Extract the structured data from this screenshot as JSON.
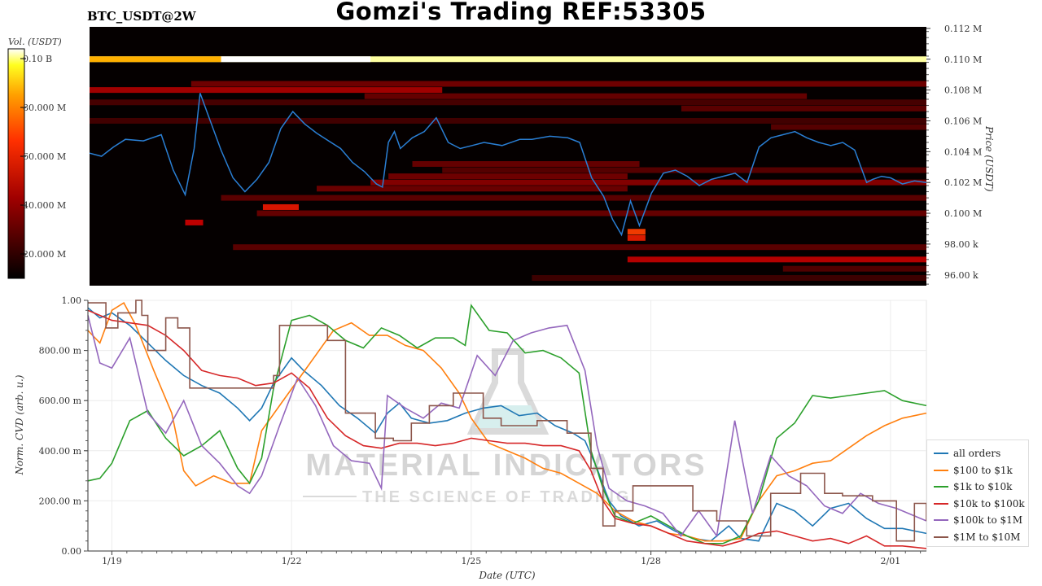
{
  "header": {
    "title": "Gomzi's Trading REF:53305",
    "symbol": "BTC_USDT@2W"
  },
  "watermark": {
    "brand": "MATERIAL INDICATORS",
    "tagline": "THE SCIENCE OF TRADING"
  },
  "colors": {
    "price_line": "#2a7fd4",
    "heatmap_bg": "#050000"
  },
  "chart_data": [
    {
      "type": "heatmap",
      "colorbar": {
        "label": "Vol. (USDT)",
        "ticks": [
          "0.10 B",
          "80.000 M",
          "60.000 M",
          "40.000 M",
          "20.000 M"
        ],
        "tick_values": [
          100000000,
          80000000,
          60000000,
          40000000,
          20000000
        ],
        "range": [
          10000000,
          104000000
        ],
        "colormap": "hot"
      },
      "ylabel": "Price (USDT)",
      "y_ticks": [
        "0.112 M",
        "0.110 M",
        "0.108 M",
        "0.106 M",
        "0.104 M",
        "0.102 M",
        "0.100 M",
        "98.00 k",
        "96.00 k"
      ],
      "y_tick_values": [
        112000,
        110000,
        108000,
        106000,
        104000,
        102000,
        100000,
        98000,
        96000
      ],
      "ylim": [
        95300,
        112100
      ],
      "x_range_days": [
        18.6,
        32.6
      ],
      "price_series": {
        "name": "",
        "days": [
          18.6,
          18.8,
          19.0,
          19.2,
          19.5,
          19.8,
          20.0,
          20.2,
          20.35,
          20.45,
          20.6,
          20.8,
          21.0,
          21.2,
          21.4,
          21.6,
          21.8,
          22.0,
          22.2,
          22.4,
          22.6,
          22.8,
          23.0,
          23.2,
          23.4,
          23.5,
          23.6,
          23.7,
          23.8,
          24.0,
          24.2,
          24.4,
          24.6,
          24.8,
          25.0,
          25.2,
          25.5,
          25.8,
          26.0,
          26.3,
          26.6,
          26.8,
          27.0,
          27.2,
          27.35,
          27.5,
          27.65,
          27.8,
          28.0,
          28.2,
          28.4,
          28.6,
          28.8,
          29.0,
          29.2,
          29.4,
          29.6,
          29.8,
          30.0,
          30.2,
          30.4,
          30.6,
          30.8,
          31.0,
          31.2,
          31.4,
          31.6,
          31.7,
          31.85,
          32.0,
          32.2,
          32.4,
          32.6
        ],
        "price": [
          103900,
          103700,
          104300,
          104800,
          104700,
          105100,
          102800,
          101200,
          104200,
          107800,
          106200,
          104100,
          102300,
          101400,
          102200,
          103300,
          105500,
          106600,
          105800,
          105200,
          104700,
          104200,
          103300,
          102700,
          101900,
          101700,
          104600,
          105300,
          104200,
          104900,
          105300,
          106200,
          104600,
          104200,
          104400,
          104600,
          104400,
          104800,
          104800,
          105000,
          104900,
          104600,
          102300,
          101100,
          99600,
          98600,
          100800,
          99200,
          101300,
          102600,
          102800,
          102400,
          101800,
          102200,
          102400,
          102600,
          102000,
          104300,
          104900,
          105100,
          105300,
          104900,
          104600,
          104400,
          104600,
          104100,
          102000,
          102200,
          102400,
          102300,
          101900,
          102100,
          102000
        ]
      },
      "bands": [
        {
          "price": 110000,
          "start": 18.6,
          "end": 32.6,
          "intensity": 0.98
        },
        {
          "price": 108000,
          "start": 18.6,
          "end": 24.5,
          "intensity": 0.32
        },
        {
          "price": 108400,
          "start": 20.3,
          "end": 32.6,
          "intensity": 0.22
        },
        {
          "price": 107600,
          "start": 23.2,
          "end": 30.6,
          "intensity": 0.2
        },
        {
          "price": 107200,
          "start": 18.6,
          "end": 32.6,
          "intensity": 0.14
        },
        {
          "price": 106800,
          "start": 28.5,
          "end": 32.6,
          "intensity": 0.18
        },
        {
          "price": 106000,
          "start": 18.6,
          "end": 32.6,
          "intensity": 0.13
        },
        {
          "price": 105600,
          "start": 30.0,
          "end": 32.6,
          "intensity": 0.17
        },
        {
          "price": 103200,
          "start": 24.0,
          "end": 27.8,
          "intensity": 0.2
        },
        {
          "price": 102800,
          "start": 24.5,
          "end": 32.6,
          "intensity": 0.17
        },
        {
          "price": 102400,
          "start": 23.6,
          "end": 27.6,
          "intensity": 0.22
        },
        {
          "price": 102000,
          "start": 23.3,
          "end": 32.6,
          "intensity": 0.26
        },
        {
          "price": 101600,
          "start": 22.4,
          "end": 27.6,
          "intensity": 0.21
        },
        {
          "price": 101000,
          "start": 20.8,
          "end": 32.6,
          "intensity": 0.18
        },
        {
          "price": 100400,
          "start": 21.5,
          "end": 22.1,
          "intensity": 0.48
        },
        {
          "price": 100000,
          "start": 21.4,
          "end": 32.6,
          "intensity": 0.2
        },
        {
          "price": 99400,
          "start": 20.2,
          "end": 20.5,
          "intensity": 0.38
        },
        {
          "price": 98800,
          "start": 27.6,
          "end": 27.9,
          "intensity": 0.62
        },
        {
          "price": 98400,
          "start": 27.6,
          "end": 27.9,
          "intensity": 0.5
        },
        {
          "price": 97800,
          "start": 21.0,
          "end": 32.6,
          "intensity": 0.18
        },
        {
          "price": 97000,
          "start": 27.6,
          "end": 32.6,
          "intensity": 0.36
        },
        {
          "price": 96400,
          "start": 30.2,
          "end": 32.6,
          "intensity": 0.16
        },
        {
          "price": 95800,
          "start": 26.0,
          "end": 32.6,
          "intensity": 0.12
        }
      ]
    },
    {
      "type": "line",
      "xlabel": "Date (UTC)",
      "ylabel": "Norm. CVD (arb. u.)",
      "ylim": [
        0,
        1
      ],
      "x_range_days": [
        18.6,
        32.6
      ],
      "x_ticks": [
        "1/19",
        "1/22",
        "1/25",
        "1/28",
        "2/01"
      ],
      "x_tick_days": [
        19,
        22,
        25,
        28,
        32
      ],
      "y_ticks": [
        "0.00",
        "200.00 m",
        "400.00 m",
        "600.00 m",
        "800.00 m",
        "1.00"
      ],
      "y_tick_values": [
        0,
        0.2,
        0.4,
        0.6,
        0.8,
        1.0
      ],
      "grid": true,
      "legend_position": "right",
      "series": [
        {
          "name": "all orders",
          "color": "#1f77b4",
          "step": false,
          "x": [
            18.6,
            18.8,
            19.0,
            19.3,
            19.6,
            19.9,
            20.2,
            20.5,
            20.8,
            21.1,
            21.3,
            21.5,
            21.7,
            22.0,
            22.2,
            22.5,
            22.8,
            23.1,
            23.4,
            23.6,
            23.8,
            24.0,
            24.3,
            24.6,
            24.9,
            25.2,
            25.5,
            25.8,
            26.1,
            26.4,
            26.7,
            26.9,
            27.1,
            27.3,
            27.5,
            27.8,
            28.1,
            28.4,
            28.7,
            29.0,
            29.3,
            29.5,
            29.8,
            30.1,
            30.4,
            30.7,
            31.0,
            31.3,
            31.6,
            31.9,
            32.2,
            32.6
          ],
          "y": [
            0.97,
            0.93,
            0.95,
            0.9,
            0.83,
            0.76,
            0.7,
            0.66,
            0.63,
            0.57,
            0.52,
            0.57,
            0.67,
            0.77,
            0.72,
            0.66,
            0.58,
            0.53,
            0.47,
            0.55,
            0.59,
            0.53,
            0.51,
            0.52,
            0.55,
            0.57,
            0.58,
            0.54,
            0.55,
            0.5,
            0.47,
            0.44,
            0.33,
            0.2,
            0.14,
            0.1,
            0.12,
            0.08,
            0.05,
            0.04,
            0.1,
            0.05,
            0.04,
            0.19,
            0.16,
            0.1,
            0.17,
            0.19,
            0.13,
            0.09,
            0.09,
            0.07
          ]
        },
        {
          "name": "$100 to $1k",
          "color": "#ff7f0e",
          "step": false,
          "x": [
            18.6,
            18.8,
            19.0,
            19.2,
            19.4,
            19.7,
            20.0,
            20.2,
            20.4,
            20.7,
            21.0,
            21.3,
            21.5,
            21.8,
            22.1,
            22.4,
            22.7,
            23.0,
            23.3,
            23.6,
            23.9,
            24.2,
            24.5,
            24.8,
            25.0,
            25.3,
            25.6,
            25.9,
            26.2,
            26.5,
            26.8,
            27.1,
            27.4,
            27.7,
            28.0,
            28.3,
            28.6,
            28.9,
            29.2,
            29.5,
            29.8,
            30.1,
            30.4,
            30.7,
            31.0,
            31.3,
            31.6,
            31.9,
            32.2,
            32.6
          ],
          "y": [
            0.88,
            0.83,
            0.96,
            0.99,
            0.9,
            0.72,
            0.55,
            0.32,
            0.26,
            0.3,
            0.27,
            0.27,
            0.48,
            0.58,
            0.68,
            0.78,
            0.88,
            0.91,
            0.86,
            0.86,
            0.82,
            0.8,
            0.73,
            0.63,
            0.53,
            0.43,
            0.4,
            0.37,
            0.33,
            0.31,
            0.27,
            0.23,
            0.16,
            0.12,
            0.1,
            0.07,
            0.06,
            0.04,
            0.04,
            0.05,
            0.2,
            0.3,
            0.32,
            0.35,
            0.36,
            0.41,
            0.46,
            0.5,
            0.53,
            0.55
          ]
        },
        {
          "name": "$1k to $10k",
          "color": "#2ca02c",
          "step": false,
          "x": [
            18.6,
            18.8,
            19.0,
            19.3,
            19.6,
            19.9,
            20.2,
            20.5,
            20.8,
            21.1,
            21.3,
            21.5,
            21.7,
            22.0,
            22.3,
            22.6,
            22.9,
            23.2,
            23.5,
            23.8,
            24.1,
            24.4,
            24.7,
            24.9,
            25.0,
            25.3,
            25.6,
            25.9,
            26.2,
            26.5,
            26.8,
            27.0,
            27.2,
            27.4,
            27.7,
            28.0,
            28.3,
            28.6,
            28.9,
            29.2,
            29.5,
            29.8,
            30.1,
            30.4,
            30.7,
            31.0,
            31.3,
            31.6,
            31.9,
            32.2,
            32.6
          ],
          "y": [
            0.28,
            0.29,
            0.35,
            0.52,
            0.56,
            0.45,
            0.38,
            0.42,
            0.48,
            0.33,
            0.27,
            0.37,
            0.65,
            0.92,
            0.94,
            0.9,
            0.84,
            0.81,
            0.89,
            0.86,
            0.81,
            0.85,
            0.85,
            0.82,
            0.98,
            0.88,
            0.87,
            0.79,
            0.8,
            0.77,
            0.71,
            0.4,
            0.25,
            0.14,
            0.11,
            0.14,
            0.1,
            0.06,
            0.03,
            0.03,
            0.06,
            0.2,
            0.45,
            0.51,
            0.62,
            0.61,
            0.62,
            0.63,
            0.64,
            0.6,
            0.58
          ]
        },
        {
          "name": "$10k to $100k",
          "color": "#d62728",
          "step": false,
          "x": [
            18.6,
            18.8,
            19.0,
            19.3,
            19.6,
            19.9,
            20.2,
            20.5,
            20.8,
            21.1,
            21.4,
            21.7,
            22.0,
            22.3,
            22.6,
            22.9,
            23.2,
            23.5,
            23.8,
            24.1,
            24.4,
            24.7,
            25.0,
            25.3,
            25.6,
            25.9,
            26.2,
            26.5,
            26.8,
            27.0,
            27.2,
            27.4,
            27.7,
            28.0,
            28.3,
            28.6,
            28.9,
            29.2,
            29.5,
            29.8,
            30.1,
            30.4,
            30.7,
            31.0,
            31.3,
            31.6,
            31.9,
            32.2,
            32.6
          ],
          "y": [
            0.96,
            0.94,
            0.92,
            0.91,
            0.9,
            0.86,
            0.8,
            0.72,
            0.7,
            0.69,
            0.66,
            0.67,
            0.71,
            0.65,
            0.53,
            0.46,
            0.42,
            0.41,
            0.43,
            0.43,
            0.42,
            0.43,
            0.45,
            0.44,
            0.43,
            0.43,
            0.42,
            0.42,
            0.4,
            0.32,
            0.2,
            0.13,
            0.11,
            0.1,
            0.07,
            0.04,
            0.03,
            0.02,
            0.04,
            0.07,
            0.08,
            0.06,
            0.04,
            0.05,
            0.03,
            0.06,
            0.02,
            0.02,
            0.01
          ]
        },
        {
          "name": "$100k to $1M",
          "color": "#9467bd",
          "step": false,
          "x": [
            18.6,
            18.8,
            19.0,
            19.3,
            19.6,
            19.9,
            20.2,
            20.5,
            20.8,
            21.1,
            21.3,
            21.5,
            21.8,
            22.1,
            22.4,
            22.7,
            23.0,
            23.3,
            23.5,
            23.6,
            23.9,
            24.2,
            24.5,
            24.8,
            25.1,
            25.4,
            25.7,
            26.0,
            26.3,
            26.6,
            26.9,
            27.1,
            27.3,
            27.6,
            27.9,
            28.2,
            28.5,
            28.8,
            29.1,
            29.4,
            29.7,
            30.0,
            30.3,
            30.6,
            30.9,
            31.2,
            31.5,
            31.8,
            32.1,
            32.4,
            32.6
          ],
          "y": [
            0.94,
            0.75,
            0.73,
            0.85,
            0.55,
            0.47,
            0.6,
            0.42,
            0.35,
            0.26,
            0.23,
            0.3,
            0.5,
            0.69,
            0.58,
            0.42,
            0.36,
            0.35,
            0.25,
            0.62,
            0.57,
            0.53,
            0.59,
            0.57,
            0.78,
            0.7,
            0.84,
            0.87,
            0.89,
            0.9,
            0.72,
            0.42,
            0.25,
            0.2,
            0.18,
            0.15,
            0.06,
            0.16,
            0.06,
            0.52,
            0.15,
            0.38,
            0.3,
            0.26,
            0.18,
            0.15,
            0.23,
            0.19,
            0.17,
            0.14,
            0.12
          ]
        },
        {
          "name": "$1M to $10M",
          "color": "#8c564b",
          "step": true,
          "x": [
            18.6,
            18.9,
            19.1,
            19.4,
            19.5,
            19.6,
            19.9,
            20.1,
            20.3,
            20.9,
            21.5,
            21.7,
            21.8,
            22.6,
            22.9,
            23.4,
            23.7,
            24.0,
            24.3,
            24.7,
            25.2,
            25.5,
            25.8,
            26.1,
            26.6,
            27.0,
            27.2,
            27.4,
            27.7,
            28.1,
            28.7,
            29.1,
            29.6,
            30.0,
            30.5,
            30.9,
            31.2,
            31.7,
            32.1,
            32.4,
            32.6
          ],
          "y": [
            0.99,
            0.89,
            0.95,
            1.0,
            0.94,
            0.8,
            0.93,
            0.89,
            0.65,
            0.65,
            0.65,
            0.7,
            0.9,
            0.84,
            0.55,
            0.45,
            0.44,
            0.51,
            0.58,
            0.63,
            0.53,
            0.5,
            0.5,
            0.52,
            0.47,
            0.33,
            0.1,
            0.16,
            0.26,
            0.26,
            0.16,
            0.12,
            0.06,
            0.23,
            0.31,
            0.23,
            0.22,
            0.2,
            0.04,
            0.19,
            0.12
          ]
        }
      ]
    }
  ]
}
